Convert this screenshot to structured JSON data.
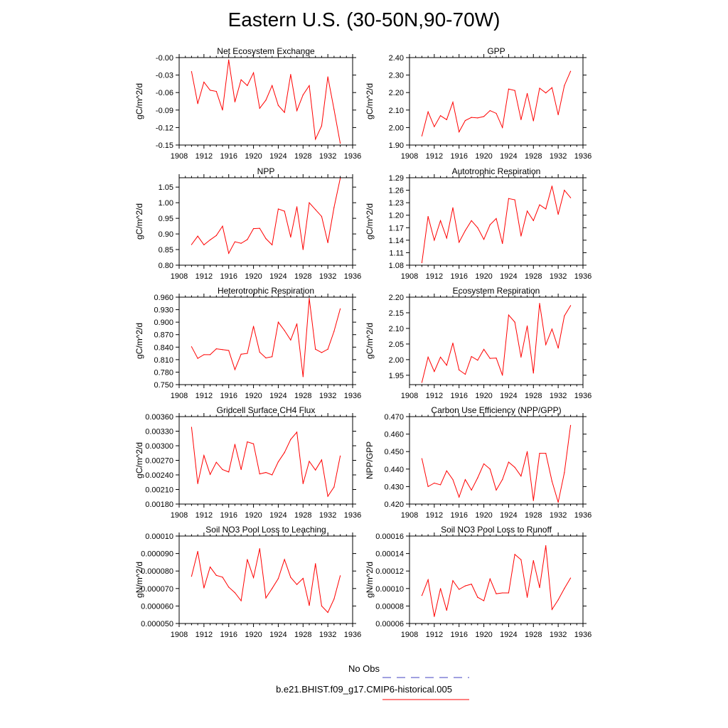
{
  "figure": {
    "title": "Eastern U.S. (30-50N,90-70W)",
    "x_ticks": [
      1908,
      1912,
      1916,
      1920,
      1924,
      1928,
      1932,
      1936
    ],
    "line_color": "#ff0000",
    "obs_color": "#4040c0"
  },
  "legend": {
    "obs_label": "No Obs",
    "model_label": "b.e21.BHIST.f09_g17.CMIP6-historical.005"
  },
  "chart_data": [
    {
      "type": "line",
      "title": "Net Ecosystem Exchange",
      "ylabel": "gC/m^2/d",
      "xlim": [
        1908,
        1936
      ],
      "ylim": [
        -0.15,
        0.0
      ],
      "yticks": [
        "-0.00",
        "-0.03",
        "-0.06",
        "-0.09",
        "-0.12",
        "-0.15"
      ],
      "ytick_values": [
        0.0,
        -0.03,
        -0.06,
        -0.09,
        -0.12,
        -0.15
      ],
      "x": [
        1910,
        1911,
        1912,
        1913,
        1914,
        1915,
        1916,
        1917,
        1918,
        1919,
        1920,
        1921,
        1922,
        1923,
        1924,
        1925,
        1926,
        1927,
        1928,
        1929,
        1930,
        1931,
        1932,
        1933,
        1934
      ],
      "values": [
        -0.024,
        -0.079,
        -0.042,
        -0.056,
        -0.058,
        -0.09,
        -0.004,
        -0.076,
        -0.038,
        -0.048,
        -0.026,
        -0.087,
        -0.073,
        -0.048,
        -0.082,
        -0.094,
        -0.029,
        -0.091,
        -0.064,
        -0.048,
        -0.14,
        -0.117,
        -0.033,
        -0.089,
        -0.147
      ]
    },
    {
      "type": "line",
      "title": "GPP",
      "ylabel": "gC/m^2/d",
      "xlim": [
        1908,
        1936
      ],
      "ylim": [
        1.9,
        2.4
      ],
      "yticks": [
        "1.90",
        "2.00",
        "2.10",
        "2.20",
        "2.30",
        "2.40"
      ],
      "ytick_values": [
        1.9,
        2.0,
        2.1,
        2.2,
        2.3,
        2.4
      ],
      "x": [
        1910,
        1911,
        1912,
        1913,
        1914,
        1915,
        1916,
        1917,
        1918,
        1919,
        1920,
        1921,
        1922,
        1923,
        1924,
        1925,
        1926,
        1927,
        1928,
        1929,
        1930,
        1931,
        1932,
        1933,
        1934
      ],
      "values": [
        1.952,
        2.09,
        2.005,
        2.068,
        2.045,
        2.145,
        1.975,
        2.04,
        2.058,
        2.055,
        2.063,
        2.097,
        2.081,
        2.0,
        2.22,
        2.212,
        2.045,
        2.195,
        2.038,
        2.225,
        2.198,
        2.228,
        2.073,
        2.24,
        2.322
      ]
    },
    {
      "type": "line",
      "title": "NPP",
      "ylabel": "gC/m^2/d",
      "xlim": [
        1908,
        1936
      ],
      "ylim": [
        0.8,
        1.08
      ],
      "yticks": [
        "0.80",
        "0.85",
        "0.90",
        "0.95",
        "1.00",
        "1.05"
      ],
      "ytick_values": [
        0.8,
        0.85,
        0.9,
        0.95,
        1.0,
        1.05
      ],
      "x": [
        1910,
        1911,
        1912,
        1913,
        1914,
        1915,
        1916,
        1917,
        1918,
        1919,
        1920,
        1921,
        1922,
        1923,
        1924,
        1925,
        1926,
        1927,
        1928,
        1929,
        1930,
        1931,
        1932,
        1933,
        1934
      ],
      "values": [
        0.866,
        0.893,
        0.865,
        0.881,
        0.895,
        0.925,
        0.838,
        0.875,
        0.87,
        0.882,
        0.917,
        0.918,
        0.885,
        0.865,
        0.98,
        0.973,
        0.89,
        0.987,
        0.85,
        1.0,
        0.978,
        0.956,
        0.872,
        0.985,
        1.078
      ]
    },
    {
      "type": "line",
      "title": "Autotrophic Respiration",
      "ylabel": "gC/m^2/d",
      "xlim": [
        1908,
        1936
      ],
      "ylim": [
        1.08,
        1.29
      ],
      "yticks": [
        "1.08",
        "1.11",
        "1.14",
        "1.17",
        "1.20",
        "1.23",
        "1.26",
        "1.29"
      ],
      "ytick_values": [
        1.08,
        1.11,
        1.14,
        1.17,
        1.2,
        1.23,
        1.26,
        1.29
      ],
      "x": [
        1910,
        1911,
        1912,
        1913,
        1914,
        1915,
        1916,
        1917,
        1918,
        1919,
        1920,
        1921,
        1922,
        1923,
        1924,
        1925,
        1926,
        1927,
        1928,
        1929,
        1930,
        1931,
        1932,
        1933,
        1934
      ],
      "values": [
        1.086,
        1.197,
        1.14,
        1.187,
        1.145,
        1.218,
        1.135,
        1.163,
        1.187,
        1.17,
        1.142,
        1.177,
        1.192,
        1.132,
        1.24,
        1.237,
        1.15,
        1.21,
        1.187,
        1.225,
        1.215,
        1.27,
        1.202,
        1.26,
        1.242
      ]
    },
    {
      "type": "line",
      "title": "Heterotrophic Respiration",
      "ylabel": "gC/m^2/d",
      "xlim": [
        1908,
        1936
      ],
      "ylim": [
        0.75,
        0.96
      ],
      "yticks": [
        "0.750",
        "0.780",
        "0.810",
        "0.840",
        "0.870",
        "0.900",
        "0.930",
        "0.960"
      ],
      "ytick_values": [
        0.75,
        0.78,
        0.81,
        0.84,
        0.87,
        0.9,
        0.93,
        0.96
      ],
      "x": [
        1910,
        1911,
        1912,
        1913,
        1914,
        1915,
        1916,
        1917,
        1918,
        1919,
        1920,
        1921,
        1922,
        1923,
        1924,
        1925,
        1926,
        1927,
        1928,
        1929,
        1930,
        1931,
        1932,
        1933,
        1934
      ],
      "values": [
        0.841,
        0.813,
        0.822,
        0.822,
        0.836,
        0.834,
        0.832,
        0.786,
        0.823,
        0.825,
        0.89,
        0.828,
        0.814,
        0.817,
        0.9,
        0.88,
        0.857,
        0.896,
        0.769,
        0.957,
        0.835,
        0.827,
        0.835,
        0.878,
        0.932
      ]
    },
    {
      "type": "line",
      "title": "Ecosystem Respiration",
      "ylabel": "gC/m^2/d",
      "xlim": [
        1908,
        1936
      ],
      "ylim": [
        1.92,
        2.2
      ],
      "yticks": [
        "1.95",
        "2.00",
        "2.05",
        "2.10",
        "2.15",
        "2.20"
      ],
      "ytick_values": [
        1.95,
        2.0,
        2.05,
        2.1,
        2.15,
        2.2
      ],
      "x": [
        1910,
        1911,
        1912,
        1913,
        1914,
        1915,
        1916,
        1917,
        1918,
        1919,
        1920,
        1921,
        1922,
        1923,
        1924,
        1925,
        1926,
        1927,
        1928,
        1929,
        1930,
        1931,
        1932,
        1933,
        1934
      ],
      "values": [
        1.927,
        2.008,
        1.962,
        2.008,
        1.982,
        2.053,
        1.967,
        1.953,
        2.01,
        1.998,
        2.033,
        2.004,
        2.005,
        1.95,
        2.143,
        2.12,
        2.008,
        2.108,
        1.957,
        2.18,
        2.048,
        2.098,
        2.037,
        2.14,
        2.173
      ]
    },
    {
      "type": "line",
      "title": "Gridcell Surface CH4 Flux",
      "ylabel": "gC/m^2/d",
      "xlim": [
        1908,
        1936
      ],
      "ylim": [
        0.0018,
        0.0036
      ],
      "yticks": [
        "0.00180",
        "0.00210",
        "0.00240",
        "0.00270",
        "0.00300",
        "0.00330",
        "0.00360"
      ],
      "ytick_values": [
        0.0018,
        0.0021,
        0.0024,
        0.0027,
        0.003,
        0.0033,
        0.0036
      ],
      "x": [
        1910,
        1911,
        1912,
        1913,
        1914,
        1915,
        1916,
        1917,
        1918,
        1919,
        1920,
        1921,
        1922,
        1923,
        1924,
        1925,
        1926,
        1927,
        1928,
        1929,
        1930,
        1931,
        1932,
        1933,
        1934
      ],
      "values": [
        0.00338,
        0.00222,
        0.0028,
        0.00241,
        0.00266,
        0.00251,
        0.00246,
        0.00303,
        0.00251,
        0.00308,
        0.00304,
        0.00242,
        0.00245,
        0.0024,
        0.00267,
        0.00286,
        0.00313,
        0.00328,
        0.00222,
        0.00268,
        0.0025,
        0.00271,
        0.00196,
        0.00215,
        0.00279
      ]
    },
    {
      "type": "line",
      "title": "Carbon Use Efficiency (NPP/GPP)",
      "ylabel": "NPP/GPP",
      "xlim": [
        1908,
        1936
      ],
      "ylim": [
        0.42,
        0.47
      ],
      "yticks": [
        "0.420",
        "0.430",
        "0.440",
        "0.450",
        "0.460",
        "0.470"
      ],
      "ytick_values": [
        0.42,
        0.43,
        0.44,
        0.45,
        0.46,
        0.47
      ],
      "x": [
        1910,
        1911,
        1912,
        1913,
        1914,
        1915,
        1916,
        1917,
        1918,
        1919,
        1920,
        1921,
        1922,
        1923,
        1924,
        1925,
        1926,
        1927,
        1928,
        1929,
        1930,
        1931,
        1932,
        1933,
        1934
      ],
      "values": [
        0.446,
        0.43,
        0.432,
        0.431,
        0.439,
        0.434,
        0.424,
        0.434,
        0.428,
        0.435,
        0.443,
        0.44,
        0.428,
        0.434,
        0.444,
        0.441,
        0.436,
        0.45,
        0.422,
        0.449,
        0.449,
        0.433,
        0.421,
        0.438,
        0.465
      ]
    },
    {
      "type": "line",
      "title": "Soil NO3 Pool Loss to Leaching",
      "ylabel": "gN/m^2/d",
      "xlim": [
        1908,
        1936
      ],
      "ylim": [
        5e-05,
        0.0001
      ],
      "yticks": [
        "0.000050",
        "0.000060",
        "0.000070",
        "0.000080",
        "0.000090",
        "0.00010"
      ],
      "ytick_values": [
        5e-05,
        6e-05,
        7e-05,
        8e-05,
        9e-05,
        0.0001
      ],
      "x": [
        1910,
        1911,
        1912,
        1913,
        1914,
        1915,
        1916,
        1917,
        1918,
        1919,
        1920,
        1921,
        1922,
        1923,
        1924,
        1925,
        1926,
        1927,
        1928,
        1929,
        1930,
        1931,
        1932,
        1933,
        1934
      ],
      "values": [
        7.7e-05,
        9.12e-05,
        7.03e-05,
        8.23e-05,
        7.75e-05,
        7.65e-05,
        7.08e-05,
        6.76e-05,
        6.3e-05,
        8.66e-05,
        7.62e-05,
        9.28e-05,
        6.46e-05,
        7e-05,
        7.57e-05,
        8.66e-05,
        7.64e-05,
        7.23e-05,
        7.58e-05,
        6.03e-05,
        8.42e-05,
        6e-05,
        5.63e-05,
        6.4e-05,
        7.73e-05
      ]
    },
    {
      "type": "line",
      "title": "Soil NO3 Pool Loss to Runoff",
      "ylabel": "gN/m^2/d",
      "xlim": [
        1908,
        1936
      ],
      "ylim": [
        6e-05,
        0.00016
      ],
      "yticks": [
        "0.00006",
        "0.00008",
        "0.00010",
        "0.00012",
        "0.00014",
        "0.00016"
      ],
      "ytick_values": [
        6e-05,
        8e-05,
        0.0001,
        0.00012,
        0.00014,
        0.00016
      ],
      "x": [
        1910,
        1911,
        1912,
        1913,
        1914,
        1915,
        1916,
        1917,
        1918,
        1919,
        1920,
        1921,
        1922,
        1923,
        1924,
        1925,
        1926,
        1927,
        1928,
        1929,
        1930,
        1931,
        1932,
        1933,
        1934
      ],
      "values": [
        9.2e-05,
        0.00011,
        6.8e-05,
        0.0001,
        7.5e-05,
        0.000109,
        9.9e-05,
        0.000103,
        0.000105,
        9e-05,
        8.6e-05,
        0.000111,
        9.4e-05,
        9.5e-05,
        9.5e-05,
        0.000139,
        0.000133,
        9e-05,
        0.000132,
        0.000101,
        0.000149,
        7.6e-05,
        8.7e-05,
        0.0001,
        0.000112
      ]
    }
  ]
}
